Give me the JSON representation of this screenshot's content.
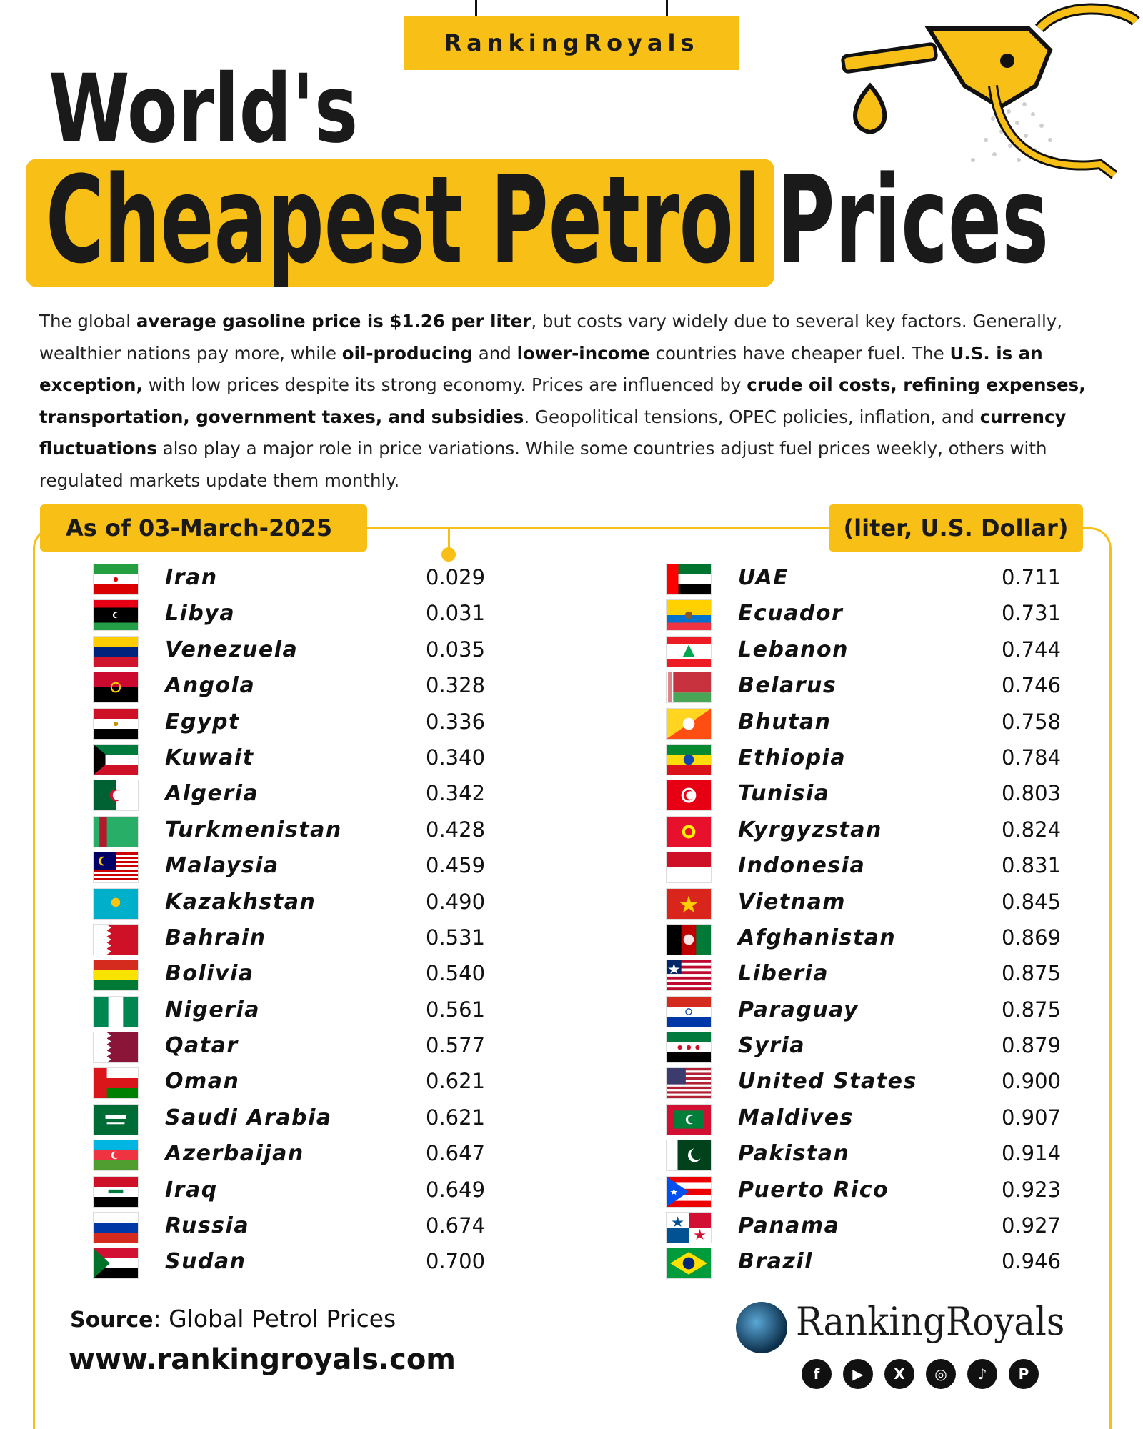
{
  "brand_badge": "RankingRoyals",
  "title": {
    "line1": "World's",
    "highlight": "Cheapest Petrol",
    "rest": "Prices"
  },
  "intro": {
    "p1": "The global ",
    "b1": "average gasoline price is $1.26 per liter",
    "p2": ", but costs vary widely due to several key factors. Generally, wealthier nations pay more, while ",
    "b2": "oil-producing",
    "p3": " and ",
    "b3": "lower-income",
    "p4": " countries have cheaper fuel. The ",
    "b4": "U.S. is an exception,",
    "p5": " with low prices despite its strong economy. Prices are influenced by ",
    "b5": "crude oil costs, refining expenses, transportation, government taxes, and subsidies",
    "p6": ". Geopolitical tensions, OPEC policies, inflation, and ",
    "b6": "currency fluctuations",
    "p7": " also play a major role in price variations. While some countries adjust fuel prices weekly, others with regulated markets update them monthly."
  },
  "chart_data": {
    "type": "table",
    "date_label": "As of  03-March-2025",
    "unit_label": "(liter, U.S. Dollar)",
    "left": [
      {
        "country": "Iran",
        "price": "0.029",
        "flag": "iran-flag"
      },
      {
        "country": "Libya",
        "price": "0.031",
        "flag": "libya-flag"
      },
      {
        "country": "Venezuela",
        "price": "0.035",
        "flag": "venezuela-flag"
      },
      {
        "country": "Angola",
        "price": "0.328",
        "flag": "angola-flag"
      },
      {
        "country": "Egypt",
        "price": "0.336",
        "flag": "egypt-flag"
      },
      {
        "country": "Kuwait",
        "price": "0.340",
        "flag": "kuwait-flag"
      },
      {
        "country": "Algeria",
        "price": "0.342",
        "flag": "algeria-flag"
      },
      {
        "country": "Turkmenistan",
        "price": "0.428",
        "flag": "turkmenistan-flag"
      },
      {
        "country": "Malaysia",
        "price": "0.459",
        "flag": "malaysia-flag"
      },
      {
        "country": "Kazakhstan",
        "price": "0.490",
        "flag": "kazakhstan-flag"
      },
      {
        "country": "Bahrain",
        "price": "0.531",
        "flag": "bahrain-flag"
      },
      {
        "country": "Bolivia",
        "price": "0.540",
        "flag": "bolivia-flag"
      },
      {
        "country": "Nigeria",
        "price": "0.561",
        "flag": "nigeria-flag"
      },
      {
        "country": "Qatar",
        "price": "0.577",
        "flag": "qatar-flag"
      },
      {
        "country": "Oman",
        "price": "0.621",
        "flag": "oman-flag"
      },
      {
        "country": "Saudi Arabia",
        "price": "0.621",
        "flag": "saudi-arabia-flag"
      },
      {
        "country": "Azerbaijan",
        "price": "0.647",
        "flag": "azerbaijan-flag"
      },
      {
        "country": "Iraq",
        "price": "0.649",
        "flag": "iraq-flag"
      },
      {
        "country": "Russia",
        "price": "0.674",
        "flag": "russia-flag"
      },
      {
        "country": "Sudan",
        "price": "0.700",
        "flag": "sudan-flag"
      }
    ],
    "right": [
      {
        "country": "UAE",
        "price": "0.711",
        "flag": "uae-flag"
      },
      {
        "country": "Ecuador",
        "price": "0.731",
        "flag": "ecuador-flag"
      },
      {
        "country": "Lebanon",
        "price": "0.744",
        "flag": "lebanon-flag"
      },
      {
        "country": "Belarus",
        "price": "0.746",
        "flag": "belarus-flag"
      },
      {
        "country": "Bhutan",
        "price": "0.758",
        "flag": "bhutan-flag"
      },
      {
        "country": "Ethiopia",
        "price": "0.784",
        "flag": "ethiopia-flag"
      },
      {
        "country": "Tunisia",
        "price": "0.803",
        "flag": "tunisia-flag"
      },
      {
        "country": "Kyrgyzstan",
        "price": "0.824",
        "flag": "kyrgyzstan-flag"
      },
      {
        "country": "Indonesia",
        "price": "0.831",
        "flag": "indonesia-flag"
      },
      {
        "country": "Vietnam",
        "price": "0.845",
        "flag": "vietnam-flag"
      },
      {
        "country": "Afghanistan",
        "price": "0.869",
        "flag": "afghanistan-flag"
      },
      {
        "country": "Liberia",
        "price": "0.875",
        "flag": "liberia-flag"
      },
      {
        "country": "Paraguay",
        "price": "0.875",
        "flag": "paraguay-flag"
      },
      {
        "country": "Syria",
        "price": "0.879",
        "flag": "syria-flag"
      },
      {
        "country": "United States",
        "price": "0.900",
        "flag": "usa-flag"
      },
      {
        "country": "Maldives",
        "price": "0.907",
        "flag": "maldives-flag"
      },
      {
        "country": "Pakistan",
        "price": "0.914",
        "flag": "pakistan-flag"
      },
      {
        "country": "Puerto Rico",
        "price": "0.923",
        "flag": "puerto-rico-flag"
      },
      {
        "country": "Panama",
        "price": "0.927",
        "flag": "panama-flag"
      },
      {
        "country": "Brazil",
        "price": "0.946",
        "flag": "brazil-flag"
      }
    ]
  },
  "footer": {
    "source_label": "Source",
    "source_value": ": Global Petrol Prices",
    "website": "www.rankingroyals.com",
    "logo_text": "RankingRoyals",
    "socials": [
      {
        "name": "facebook-icon",
        "glyph": "f"
      },
      {
        "name": "youtube-icon",
        "glyph": "▶"
      },
      {
        "name": "x-icon",
        "glyph": "X"
      },
      {
        "name": "instagram-icon",
        "glyph": "◎"
      },
      {
        "name": "tiktok-icon",
        "glyph": "♪"
      },
      {
        "name": "pinterest-icon",
        "glyph": "P"
      }
    ]
  },
  "colors": {
    "accent": "#f8bf16",
    "text": "#111111"
  }
}
